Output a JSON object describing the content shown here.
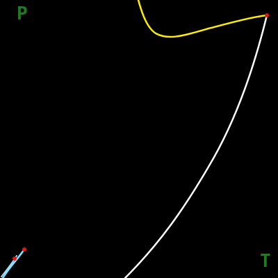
{
  "background_color": "#000000",
  "labels": {
    "top_left": {
      "text": "P",
      "color": "#1e7d1e"
    },
    "bottom_right": {
      "text": "T",
      "color": "#1e7d1e"
    }
  },
  "curves": {
    "yellow": {
      "color": "#ffee00"
    },
    "white": {
      "color": "#ffffff"
    },
    "cyan": {
      "color": "#7fe6ff"
    }
  },
  "markers": {
    "color": "#dd1a1a"
  }
}
